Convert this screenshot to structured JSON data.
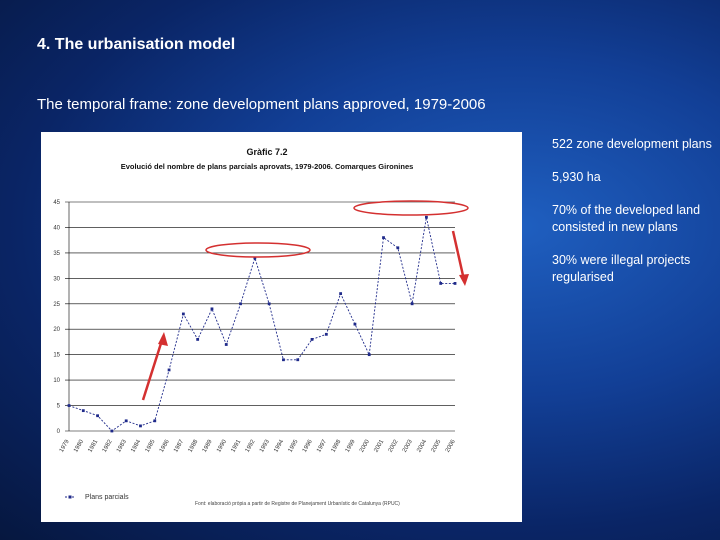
{
  "slide": {
    "title": "4. The urbanisation model",
    "subtitle": "The temporal frame: zone development plans approved, 1979-2006"
  },
  "bullets": [
    "522 zone development plans",
    "5,930 ha",
    "70% of the developed land consisted in new plans",
    "30% were illegal projects regularised"
  ],
  "colors": {
    "background": "#123f96",
    "series": "#1f2a8a",
    "highlight": "#d43030"
  },
  "chart_data": {
    "type": "line",
    "title": "Gràfic 7.2",
    "subtitle": "Evolució del nombre de plans parcials aprovats, 1979-2006. Comarques Gironines",
    "x": [
      "1979",
      "1980",
      "1981",
      "1982",
      "1983",
      "1984",
      "1985",
      "1986",
      "1987",
      "1988",
      "1989",
      "1990",
      "1991",
      "1992",
      "1993",
      "1994",
      "1995",
      "1996",
      "1997",
      "1998",
      "1999",
      "2000",
      "2001",
      "2002",
      "2003",
      "2004",
      "2005",
      "2006"
    ],
    "series": [
      {
        "name": "Plans parcials",
        "values": [
          5,
          4,
          3,
          0,
          2,
          1,
          2,
          12,
          23,
          18,
          24,
          17,
          25,
          34,
          25,
          14,
          14,
          18,
          19,
          27,
          21,
          15,
          38,
          36,
          25,
          42,
          29,
          29
        ]
      }
    ],
    "ylim": [
      0,
      45
    ],
    "yticks": [
      0,
      5,
      10,
      15,
      20,
      25,
      30,
      35,
      40,
      45
    ],
    "grid": true,
    "legend": "bottom-left",
    "source": "Font: elaboració pròpia a partir de Registre de Planejament Urbanístic de Catalunya (RPUC)"
  }
}
